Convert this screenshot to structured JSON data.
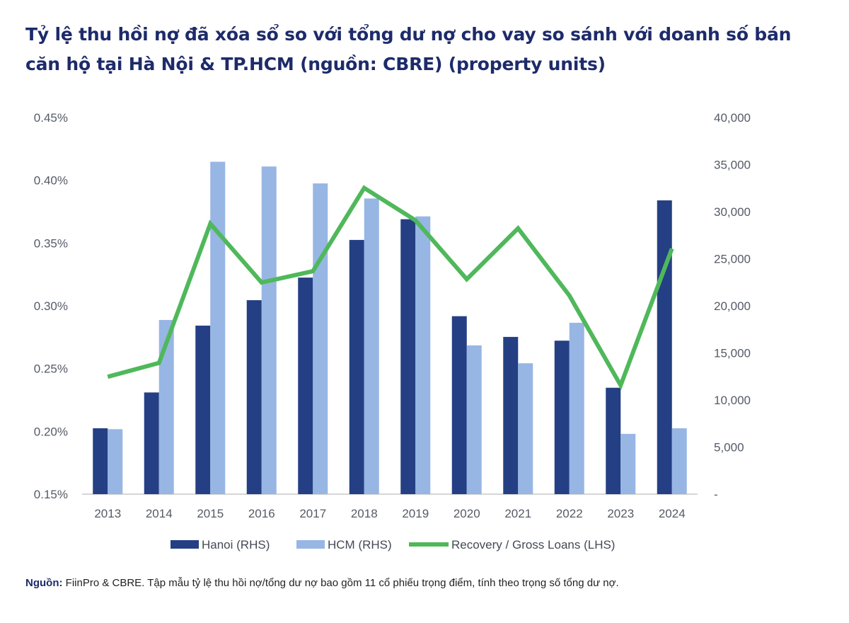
{
  "title": "Tỷ lệ thu hồi nợ đã xóa sổ so với tổng dư nợ cho vay so sánh với doanh số bán căn hộ tại Hà Nội & TP.HCM (nguồn: CBRE) (property units)",
  "source_label": "Nguồn:",
  "source_text": " FiinPro & CBRE. Tập mẫu tỷ lệ thu hồi nợ/tổng dư nợ bao gồm 11 cổ phiếu trọng điểm, tính theo trọng số tổng dư nợ.",
  "chart_data": {
    "type": "bar",
    "categories": [
      "2013",
      "2014",
      "2015",
      "2016",
      "2017",
      "2018",
      "2019",
      "2020",
      "2021",
      "2022",
      "2023",
      "2024"
    ],
    "y_left": {
      "ticks": [
        "0.15%",
        "0.20%",
        "0.25%",
        "0.30%",
        "0.35%",
        "0.40%",
        "0.45%"
      ],
      "range": [
        0.15,
        0.45
      ]
    },
    "y_right": {
      "ticks": [
        "-",
        "5,000",
        "10,000",
        "15,000",
        "20,000",
        "25,000",
        "30,000",
        "35,000",
        "40,000"
      ],
      "range": [
        0,
        40000
      ]
    },
    "series": [
      {
        "name": "Hanoi (RHS)",
        "type": "bar",
        "axis": "right",
        "color": "#253f85",
        "values": [
          7000,
          10800,
          17900,
          20600,
          23000,
          27000,
          29200,
          18900,
          16700,
          16300,
          11300,
          31200
        ]
      },
      {
        "name": "HCM (RHS)",
        "type": "bar",
        "axis": "right",
        "color": "#97b6e4",
        "values": [
          6900,
          18500,
          35300,
          34800,
          33000,
          31400,
          29500,
          15800,
          13900,
          18200,
          6400,
          7000
        ]
      },
      {
        "name": "Recovery / Gross Loans (LHS)",
        "type": "line",
        "axis": "left",
        "color": "#4fb85a",
        "values": [
          0.2435,
          0.2545,
          0.3654,
          0.3186,
          0.3276,
          0.3939,
          0.3681,
          0.3212,
          0.3617,
          0.3082,
          0.2367,
          0.3456
        ]
      }
    ],
    "legend_position": "bottom",
    "grid": false
  }
}
